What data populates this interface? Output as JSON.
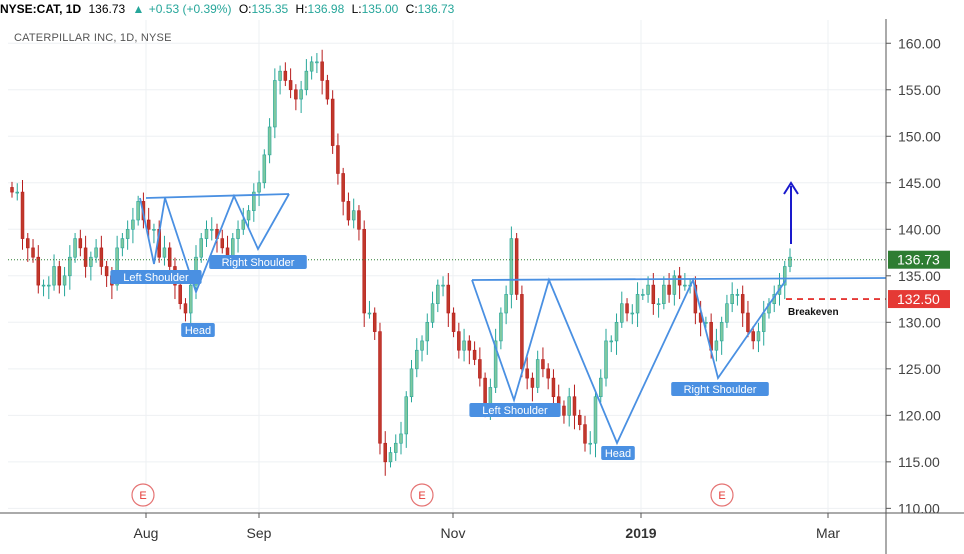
{
  "header": {
    "symbol": "NYSE:CAT, 1D",
    "last": "136.73",
    "change_arrow": "▲",
    "change": "+0.53 (+0.39%)",
    "o_label": "O:",
    "o": "135.35",
    "h_label": "H:",
    "h": "136.98",
    "l_label": "L:",
    "l": "135.00",
    "c_label": "C:",
    "c": "136.73"
  },
  "chart_title": "CATERPILLAR INC, 1D, NYSE",
  "colors": {
    "up": "#26a69a",
    "down": "#b71c1c",
    "upFill": "#7fc8a0",
    "downFill": "#c0392b",
    "pattern": "#4a90e2",
    "target": "#1a1acc",
    "breakeven": "#e53935",
    "lastPrice": "#2e7d32"
  },
  "chart_data": {
    "type": "candlestick",
    "title": "CATERPILLAR INC, 1D, NYSE",
    "x_tick_labels": [
      "Aug",
      "Sep",
      "Nov",
      "2019",
      "Mar"
    ],
    "y_tick_labels": [
      "110.00",
      "115.00",
      "120.00",
      "125.00",
      "130.00",
      "135.00",
      "140.00",
      "145.00",
      "150.00",
      "155.00",
      "160.00"
    ],
    "ylim": [
      109.5,
      162.5
    ],
    "last_price_label": "136.73",
    "breakeven_label": "132.50",
    "breakeven_text": "Breakeven",
    "annotations": [
      "Left Shoulder",
      "Head",
      "Right Shoulder",
      "Left Shoulder",
      "Head",
      "Right Shoulder"
    ],
    "earnings_markers": [
      "E",
      "E",
      "E"
    ],
    "closes": [
      [
        144,
        144,
        139,
        138,
        137,
        134,
        134,
        134,
        136,
        134,
        135,
        137,
        139,
        138,
        136,
        137,
        138,
        136,
        135,
        134,
        138,
        139,
        140,
        141,
        143,
        141,
        140,
        140,
        137,
        138,
        136,
        134,
        132,
        131,
        134,
        137,
        139,
        140,
        140,
        139,
        138,
        137,
        139,
        140,
        141,
        142,
        144,
        145,
        148,
        151,
        156,
        157,
        156,
        155,
        154,
        155,
        157,
        158,
        158,
        156,
        154,
        149,
        146,
        143,
        141,
        142,
        140,
        131,
        131,
        129,
        117,
        115,
        116,
        117,
        118,
        122,
        125,
        127,
        128,
        130,
        132,
        134,
        134,
        131,
        129,
        127,
        128,
        127,
        126,
        124,
        121,
        123,
        128,
        131,
        133,
        139,
        133,
        125,
        124,
        123,
        126,
        125,
        124,
        122,
        121,
        120,
        122,
        120,
        119,
        117,
        117,
        122,
        124,
        128,
        128,
        130,
        132,
        131,
        131,
        133,
        133,
        134,
        132,
        132,
        134,
        133,
        135,
        134,
        134,
        134,
        131,
        130,
        130,
        127,
        128,
        130,
        132,
        133,
        133,
        131,
        129,
        128,
        129,
        131,
        132,
        133,
        134,
        136,
        137
      ]
    ]
  }
}
